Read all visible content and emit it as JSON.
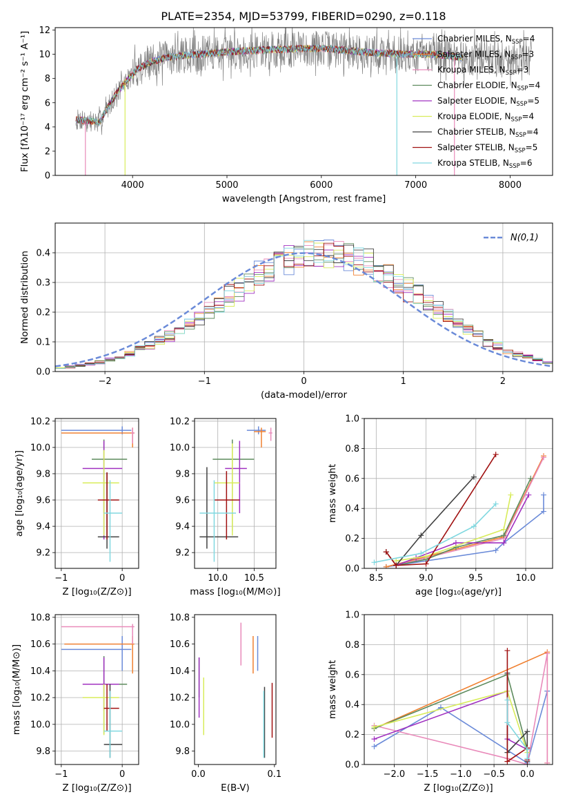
{
  "title": "PLATE=2354, MJD=53799, FIBERID=0290, z=0.118",
  "colors": {
    "Chabrier MILES": "#6a8ad8",
    "Salpeter MILES": "#f08030",
    "Kroupa MILES": "#e98aba",
    "Chabrier ELODIE": "#5c8a5c",
    "Salpeter ELODIE": "#a030c0",
    "Kroupa ELODIE": "#d8ec5a",
    "Chabrier STELIB": "#404040",
    "Salpeter STELIB": "#a01010",
    "Kroupa STELIB": "#80d8e0",
    "data": "#808080",
    "gaussian": "#6a8ad8"
  },
  "chart_data": [
    {
      "id": "spectrum",
      "type": "line",
      "title": "PLATE=2354, MJD=53799, FIBERID=0290, z=0.118",
      "xlabel": "wavelength [Angstrom, rest frame]",
      "ylabel": "Flux [fλ10⁻¹⁷ erg cm⁻² s⁻¹ A⁻¹]",
      "xlim": [
        3180,
        8450
      ],
      "ylim": [
        0,
        12.2
      ],
      "xticks": [
        4000,
        5000,
        6000,
        7000,
        8000
      ],
      "yticks": [
        0,
        2,
        4,
        6,
        8,
        10,
        12
      ],
      "legend_position": "right",
      "legend": [
        {
          "label": "Chabrier MILES, N_SSP=4",
          "base": "Chabrier MILES, N",
          "sub": "SSP",
          "tail": "=4"
        },
        {
          "label": "Salpeter MILES, N_SSP=3",
          "base": "Salpeter MILES, N",
          "sub": "SSP",
          "tail": "=3"
        },
        {
          "label": "Kroupa MILES, N_SSP=3",
          "base": "Kroupa MILES, N",
          "sub": "SSP",
          "tail": "=3"
        },
        {
          "label": "Chabrier ELODIE, N_SSP=4",
          "base": "Chabrier ELODIE, N",
          "sub": "SSP",
          "tail": "=4"
        },
        {
          "label": "Salpeter ELODIE, N_SSP=5",
          "base": "Salpeter ELODIE, N",
          "sub": "SSP",
          "tail": "=5"
        },
        {
          "label": "Kroupa ELODIE, N_SSP=4",
          "base": "Kroupa ELODIE, N",
          "sub": "SSP",
          "tail": "=4"
        },
        {
          "label": "Chabrier STELIB, N_SSP=4",
          "base": "Chabrier STELIB, N",
          "sub": "SSP",
          "tail": "=4"
        },
        {
          "label": "Salpeter STELIB, N_SSP=5",
          "base": "Salpeter STELIB, N",
          "sub": "SSP",
          "tail": "=5"
        },
        {
          "label": "Kroupa STELIB, N_SSP=6",
          "base": "Kroupa STELIB, N",
          "sub": "SSP",
          "tail": "=6"
        }
      ],
      "continuum": [
        [
          3400,
          4.6
        ],
        [
          3650,
          4.4
        ],
        [
          3750,
          5.8
        ],
        [
          3850,
          7.0
        ],
        [
          3950,
          7.9
        ],
        [
          4050,
          8.8
        ],
        [
          4200,
          9.4
        ],
        [
          4400,
          9.8
        ],
        [
          4700,
          10.0
        ],
        [
          5000,
          10.2
        ],
        [
          5500,
          10.4
        ],
        [
          6000,
          10.5
        ],
        [
          6300,
          10.3
        ],
        [
          6600,
          10.1
        ],
        [
          6900,
          10.0
        ],
        [
          7200,
          10.0
        ],
        [
          7500,
          9.7
        ]
      ],
      "model_range": [
        3400,
        7500
      ],
      "data_range": [
        3400,
        8230
      ],
      "spikes": [
        [
          3500,
          0
        ],
        [
          3920,
          0
        ],
        [
          6800,
          0
        ],
        [
          7410,
          0
        ]
      ]
    },
    {
      "id": "residuals",
      "type": "histogram",
      "xlabel": "(data-model)/error",
      "ylabel": "Normed distribution",
      "xlim": [
        -2.5,
        2.5
      ],
      "ylim": [
        0,
        0.5
      ],
      "xticks": [
        -2,
        -1,
        0,
        1,
        2
      ],
      "yticks": [
        0.0,
        0.1,
        0.2,
        0.3,
        0.4
      ],
      "grid": true,
      "legend_position": "top-right",
      "reference_curve": "N(0,1)",
      "bin_width": 0.1
    },
    {
      "id": "age_vs_Z",
      "type": "scatter",
      "xlabel": "Z [log₁₀(Z/Z⊙)]",
      "ylabel": "age  [log₁₀(age/yr)]",
      "xlim": [
        -1.1,
        0.27
      ],
      "ylim": [
        9.08,
        10.22
      ],
      "xticks": [
        -1,
        0
      ],
      "yticks": [
        9.2,
        9.4,
        9.6,
        9.8,
        10.0,
        10.2
      ],
      "grid": true,
      "points": [
        {
          "model": "Chabrier MILES",
          "x": 0.0,
          "xlo": -1.0,
          "xhi": 0.15,
          "y": 10.13,
          "ylo": 10.1,
          "yhi": 10.16
        },
        {
          "model": "Salpeter MILES",
          "x": 0.17,
          "xlo": -1.0,
          "xhi": 0.2,
          "y": 10.11,
          "ylo": 10.0,
          "yhi": 10.15
        },
        {
          "model": "Kroupa MILES",
          "x": 0.17,
          "xlo": 0.15,
          "xhi": 0.2,
          "y": 10.11,
          "ylo": 10.03,
          "yhi": 10.15
        },
        {
          "model": "Chabrier ELODIE",
          "x": -0.3,
          "xlo": -0.5,
          "xhi": 0.08,
          "y": 9.91,
          "ylo": 9.5,
          "yhi": 10.06
        },
        {
          "model": "Salpeter ELODIE",
          "x": -0.3,
          "xlo": -0.65,
          "xhi": 0.0,
          "y": 9.84,
          "ylo": 9.3,
          "yhi": 10.05
        },
        {
          "model": "Kroupa ELODIE",
          "x": -0.3,
          "xlo": -0.65,
          "xhi": -0.05,
          "y": 9.73,
          "ylo": 9.33,
          "yhi": 9.98
        },
        {
          "model": "Chabrier STELIB",
          "x": -0.25,
          "xlo": -0.4,
          "xhi": -0.05,
          "y": 9.32,
          "ylo": 9.23,
          "yhi": 9.81
        },
        {
          "model": "Salpeter STELIB",
          "x": -0.25,
          "xlo": -0.4,
          "xhi": -0.05,
          "y": 9.6,
          "ylo": 9.3,
          "yhi": 9.81
        },
        {
          "model": "Kroupa STELIB",
          "x": -0.2,
          "xlo": -0.3,
          "xhi": 0.0,
          "y": 9.5,
          "ylo": 9.13,
          "yhi": 9.75
        }
      ]
    },
    {
      "id": "age_vs_mass",
      "type": "scatter",
      "xlabel": "mass [log₁₀(M/M⊙)]",
      "ylabel": "",
      "xlim": [
        9.68,
        10.8
      ],
      "ylim": [
        9.08,
        10.22
      ],
      "xticks": [
        10.0,
        10.5
      ],
      "yticks": [
        9.2,
        9.4,
        9.6,
        9.8,
        10.0,
        10.2
      ],
      "grid": true,
      "points": [
        {
          "model": "Chabrier MILES",
          "x": 10.56,
          "xlo": 10.4,
          "xhi": 10.66,
          "y": 10.13,
          "ylo": 10.1,
          "yhi": 10.16
        },
        {
          "model": "Salpeter MILES",
          "x": 10.6,
          "xlo": 10.5,
          "xhi": 10.66,
          "y": 10.12,
          "ylo": 10.0,
          "yhi": 10.15
        },
        {
          "model": "Kroupa MILES",
          "x": 10.73,
          "xlo": 10.7,
          "xhi": 10.75,
          "y": 10.11,
          "ylo": 10.05,
          "yhi": 10.15
        },
        {
          "model": "Chabrier ELODIE",
          "x": 10.2,
          "xlo": 9.93,
          "xhi": 10.5,
          "y": 9.91,
          "ylo": 9.36,
          "yhi": 10.06
        },
        {
          "model": "Salpeter ELODIE",
          "x": 10.3,
          "xlo": 10.1,
          "xhi": 10.4,
          "y": 9.84,
          "ylo": 9.5,
          "yhi": 10.05
        },
        {
          "model": "Kroupa ELODIE",
          "x": 10.2,
          "xlo": 9.95,
          "xhi": 10.3,
          "y": 9.73,
          "ylo": 9.33,
          "yhi": 10.03
        },
        {
          "model": "Chabrier STELIB",
          "x": 9.85,
          "xlo": 9.75,
          "xhi": 10.28,
          "y": 9.32,
          "ylo": 9.23,
          "yhi": 9.85
        },
        {
          "model": "Salpeter STELIB",
          "x": 10.12,
          "xlo": 9.95,
          "xhi": 10.3,
          "y": 9.6,
          "ylo": 9.3,
          "yhi": 9.82
        },
        {
          "model": "Kroupa STELIB",
          "x": 9.95,
          "xlo": 9.75,
          "xhi": 10.25,
          "y": 9.5,
          "ylo": 9.13,
          "yhi": 9.75
        }
      ]
    },
    {
      "id": "mass_weight_vs_age",
      "type": "line",
      "xlabel": "age  [log₁₀(age/yr)]",
      "ylabel": "mass weight",
      "xlim": [
        8.38,
        10.27
      ],
      "ylim": [
        0,
        1.0
      ],
      "xticks": [
        8.5,
        9.0,
        9.5,
        10.0
      ],
      "yticks": [
        0.0,
        0.2,
        0.4,
        0.6,
        0.8,
        1.0
      ],
      "grid": true,
      "series": [
        {
          "model": "Chabrier MILES",
          "x": [
            8.6,
            9.7,
            9.78,
            10.18,
            10.18
          ],
          "y": [
            0.01,
            0.12,
            0.17,
            0.38,
            0.49
          ]
        },
        {
          "model": "Salpeter MILES",
          "x": [
            8.6,
            9.78,
            10.18
          ],
          "y": [
            0.01,
            0.21,
            0.75
          ]
        },
        {
          "model": "Kroupa MILES",
          "x": [
            8.7,
            9.78,
            10.18
          ],
          "y": [
            0.02,
            0.2,
            0.74
          ]
        },
        {
          "model": "Chabrier ELODIE",
          "x": [
            8.7,
            9.0,
            9.3,
            9.78,
            10.05
          ],
          "y": [
            0.02,
            0.06,
            0.14,
            0.22,
            0.6
          ]
        },
        {
          "model": "Salpeter ELODIE",
          "x": [
            8.7,
            8.9,
            9.3,
            9.78,
            10.03
          ],
          "y": [
            0.02,
            0.07,
            0.17,
            0.17,
            0.49
          ]
        },
        {
          "model": "Kroupa ELODIE",
          "x": [
            8.7,
            9.0,
            9.78,
            9.85
          ],
          "y": [
            0.05,
            0.08,
            0.26,
            0.49
          ]
        },
        {
          "model": "Chabrier STELIB",
          "x": [
            8.6,
            8.7,
            8.95,
            9.48
          ],
          "y": [
            0.11,
            0.02,
            0.22,
            0.61
          ]
        },
        {
          "model": "Salpeter STELIB",
          "x": [
            8.6,
            8.7,
            9.0,
            9.7
          ],
          "y": [
            0.11,
            0.02,
            0.03,
            0.76
          ]
        },
        {
          "model": "Kroupa STELIB",
          "x": [
            8.48,
            8.95,
            9.48,
            9.7
          ],
          "y": [
            0.04,
            0.1,
            0.28,
            0.43
          ]
        }
      ]
    },
    {
      "id": "mass_vs_Z",
      "type": "scatter",
      "xlabel": "Z [log₁₀(Z/Z⊙)]",
      "ylabel": "mass [log₁₀(M/M⊙)]",
      "xlim": [
        -1.1,
        0.27
      ],
      "ylim": [
        9.7,
        10.82
      ],
      "xticks": [
        -1,
        0
      ],
      "yticks": [
        9.8,
        10.0,
        10.2,
        10.4,
        10.6,
        10.8
      ],
      "grid": true,
      "points": [
        {
          "model": "Chabrier MILES",
          "x": 0.0,
          "xlo": -1.0,
          "xhi": 0.15,
          "y": 10.56,
          "ylo": 10.4,
          "yhi": 10.66
        },
        {
          "model": "Salpeter MILES",
          "x": 0.17,
          "xlo": -0.95,
          "xhi": 0.2,
          "y": 10.6,
          "ylo": 10.38,
          "yhi": 10.66
        },
        {
          "model": "Kroupa MILES",
          "x": 0.17,
          "xlo": -1.0,
          "xhi": 0.2,
          "y": 10.73,
          "ylo": 10.6,
          "yhi": 10.75
        },
        {
          "model": "Chabrier ELODIE",
          "x": -0.3,
          "xlo": -0.5,
          "xhi": 0.08,
          "y": 10.3,
          "ylo": 9.93,
          "yhi": 10.51
        },
        {
          "model": "Salpeter ELODIE",
          "x": -0.3,
          "xlo": -0.65,
          "xhi": -0.05,
          "y": 10.3,
          "ylo": 10.1,
          "yhi": 10.5
        },
        {
          "model": "Kroupa ELODIE",
          "x": -0.3,
          "xlo": -0.65,
          "xhi": -0.05,
          "y": 10.2,
          "ylo": 9.92,
          "yhi": 10.3
        },
        {
          "model": "Chabrier STELIB",
          "x": -0.2,
          "xlo": -0.3,
          "xhi": 0.0,
          "y": 9.85,
          "ylo": 9.75,
          "yhi": 10.3
        },
        {
          "model": "Salpeter STELIB",
          "x": -0.25,
          "xlo": -0.3,
          "xhi": -0.05,
          "y": 10.12,
          "ylo": 9.95,
          "yhi": 10.3
        },
        {
          "model": "Kroupa STELIB",
          "x": -0.2,
          "xlo": -0.3,
          "xhi": 0.0,
          "y": 9.95,
          "ylo": 9.75,
          "yhi": 10.25
        }
      ]
    },
    {
      "id": "mass_vs_ebv",
      "type": "scatter",
      "xlabel": "E(B-V)",
      "ylabel": "",
      "xlim": [
        -0.005,
        0.102
      ],
      "ylim": [
        9.7,
        10.82
      ],
      "xticks": [
        0.0,
        0.1
      ],
      "yticks": [
        9.8,
        10.0,
        10.2,
        10.4,
        10.6,
        10.8
      ],
      "grid": false,
      "points": [
        {
          "model": "Chabrier MILES",
          "x": 0.078,
          "y": 10.56,
          "ylo": 10.4,
          "yhi": 10.66
        },
        {
          "model": "Salpeter MILES",
          "x": 0.072,
          "y": 10.52,
          "ylo": 10.38,
          "yhi": 10.66
        },
        {
          "model": "Kroupa MILES",
          "x": 0.056,
          "y": 10.6,
          "ylo": 10.44,
          "yhi": 10.76
        },
        {
          "model": "Chabrier ELODIE",
          "x": 0.001,
          "y": 10.35,
          "ylo": 10.2,
          "yhi": 10.5
        },
        {
          "model": "Salpeter ELODIE",
          "x": 0.001,
          "y": 10.3,
          "ylo": 10.05,
          "yhi": 10.5
        },
        {
          "model": "Kroupa ELODIE",
          "x": 0.007,
          "y": 10.1,
          "ylo": 9.92,
          "yhi": 10.35
        },
        {
          "model": "Chabrier STELIB",
          "x": 0.087,
          "y": 10.0,
          "ylo": 9.75,
          "yhi": 10.28
        },
        {
          "model": "Salpeter STELIB",
          "x": 0.097,
          "y": 10.1,
          "ylo": 9.9,
          "yhi": 10.31
        },
        {
          "model": "Kroupa STELIB",
          "x": 0.086,
          "y": 9.95,
          "ylo": 9.75,
          "yhi": 10.25
        }
      ]
    },
    {
      "id": "mass_weight_vs_Z",
      "type": "line",
      "xlabel": "Z [log₁₀(Z/Z⊙)]",
      "ylabel": "mass weight",
      "xlim": [
        -2.45,
        0.38
      ],
      "ylim": [
        0,
        1.0
      ],
      "xticks": [
        -2.0,
        -1.5,
        -1.0,
        -0.5,
        0.0
      ],
      "yticks": [
        0.0,
        0.2,
        0.4,
        0.6,
        0.8,
        1.0
      ],
      "grid": true,
      "series": [
        {
          "model": "Chabrier MILES",
          "x": [
            -2.3,
            -1.3,
            0.0,
            0.3,
            0.3
          ],
          "y": [
            0.12,
            0.38,
            0.01,
            0.49,
            0.49
          ]
        },
        {
          "model": "Salpeter MILES",
          "x": [
            -2.3,
            0.3,
            0.3
          ],
          "y": [
            0.24,
            0.75,
            0.01
          ]
        },
        {
          "model": "Kroupa MILES",
          "x": [
            -2.3,
            -0.3,
            0.0,
            0.3,
            0.3
          ],
          "y": [
            0.26,
            0.04,
            0.0,
            0.74,
            0.01
          ]
        },
        {
          "model": "Chabrier ELODIE",
          "x": [
            -2.3,
            -0.3,
            0.0
          ],
          "y": [
            0.24,
            0.6,
            0.1
          ]
        },
        {
          "model": "Salpeter ELODIE",
          "x": [
            -2.3,
            -0.3,
            -0.3,
            0.0
          ],
          "y": [
            0.17,
            0.49,
            0.17,
            0.1
          ]
        },
        {
          "model": "Kroupa ELODIE",
          "x": [
            -2.3,
            -0.3,
            0.0
          ],
          "y": [
            0.25,
            0.49,
            0.08
          ]
        },
        {
          "model": "Chabrier STELIB",
          "x": [
            -0.3,
            -0.3,
            0.0,
            0.0
          ],
          "y": [
            0.61,
            0.08,
            0.22,
            0.02
          ]
        },
        {
          "model": "Salpeter STELIB",
          "x": [
            -0.3,
            -0.3,
            0.0,
            0.0
          ],
          "y": [
            0.76,
            0.02,
            0.11,
            0.03
          ]
        },
        {
          "model": "Kroupa STELIB",
          "x": [
            -0.3,
            -0.3,
            0.0,
            0.0
          ],
          "y": [
            0.43,
            0.28,
            0.1,
            0.04
          ]
        }
      ]
    }
  ]
}
